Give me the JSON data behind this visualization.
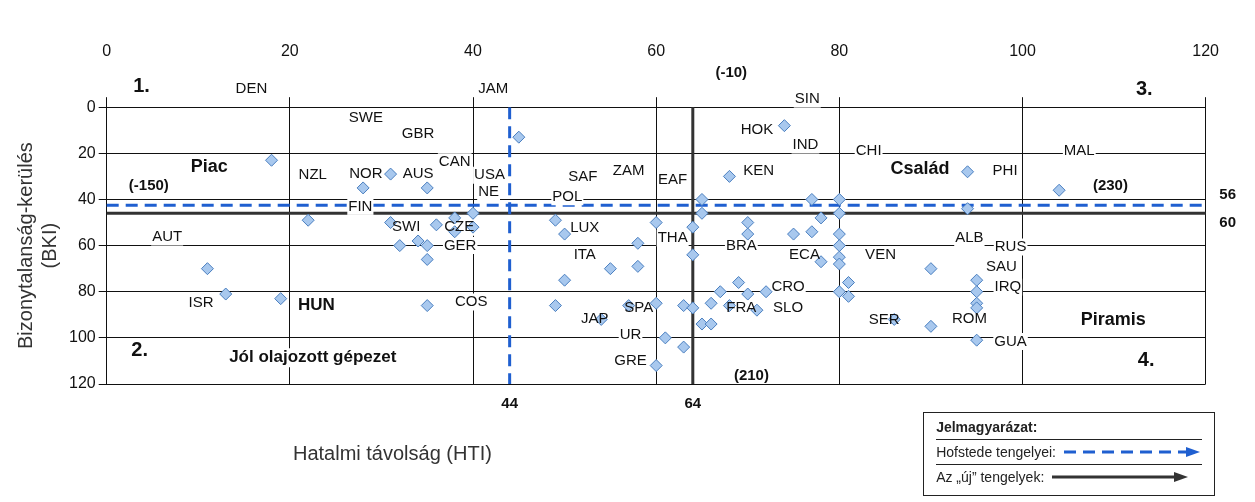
{
  "chart_data": {
    "type": "scatter",
    "xlabel": "Hatalmi távolság (HTI)",
    "ylabel": "Bizonytalanság-kerülés (BKI)",
    "legend_title": "Jelmagyarázat:",
    "xlim": [
      0,
      120
    ],
    "xticks": [
      0,
      20,
      40,
      60,
      80,
      100,
      120
    ],
    "ylim": [
      120,
      0
    ],
    "yticks": [
      0,
      20,
      40,
      60,
      80,
      100,
      120
    ],
    "grid": true,
    "legend": "bottom right",
    "series": [
      {
        "color": "#a8c8ee",
        "marker": "diamond",
        "x": [
          45,
          18,
          31,
          28,
          35,
          22,
          31,
          36,
          40,
          38,
          38,
          40,
          32,
          34,
          35,
          35,
          11,
          13,
          19,
          35,
          68,
          74,
          65,
          65,
          77,
          80,
          80,
          49,
          50,
          60,
          64,
          64,
          58,
          55,
          58,
          50,
          49,
          54,
          57,
          60,
          63,
          64,
          66,
          67,
          69,
          70,
          72,
          71,
          68,
          65,
          66,
          61,
          63,
          60,
          70,
          70,
          75,
          77,
          78,
          78,
          80,
          80,
          80,
          80,
          81,
          81,
          80,
          94,
          94,
          104,
          90,
          95,
          95,
          95,
          95,
          86,
          90,
          95
        ],
        "values": [
          13,
          23,
          29,
          35,
          35,
          49,
          50,
          51,
          46,
          48,
          54,
          52,
          60,
          58,
          60,
          66,
          70,
          81,
          83,
          86,
          30,
          8,
          40,
          46,
          40,
          40,
          46,
          49,
          55,
          50,
          52,
          64,
          59,
          70,
          69,
          75,
          86,
          92,
          86,
          85,
          86,
          87,
          85,
          80,
          76,
          81,
          80,
          88,
          86,
          94,
          94,
          100,
          104,
          112,
          50,
          55,
          55,
          54,
          48,
          67,
          55,
          60,
          65,
          68,
          76,
          82,
          80,
          28,
          44,
          36,
          70,
          75,
          80,
          85,
          87,
          92,
          95,
          101
        ]
      },
      {
        "type": "line",
        "name": "Hofstede tengelyei:",
        "color": "#1f5fd0",
        "line_style": "dashed",
        "marker": "none",
        "x": [
          44,
          44
        ],
        "values": [
          0,
          120
        ]
      },
      {
        "type": "line",
        "name": "Az „új” tengelyek:",
        "color": "#333333",
        "line_style": "solid",
        "marker": "none",
        "x": [
          64,
          64
        ],
        "values": [
          0,
          120
        ]
      }
    ],
    "ref_lines": [
      {
        "axis": "y",
        "value": 42.5,
        "color": "#1f5fd0",
        "line_style": "dashed"
      },
      {
        "axis": "y",
        "value": 46,
        "color": "#333333",
        "line_style": "solid"
      }
    ],
    "annotations": [
      "44",
      "64",
      "1.",
      "DEN",
      "JAM",
      "SWE",
      "GBR",
      "Piac",
      "(-150)",
      "NZL",
      "NOR",
      "AUS",
      "CAN",
      "USA",
      "NE",
      "FIN",
      "AUT",
      "SWI",
      "CZE",
      "GER",
      "ISR",
      "HUN",
      "COS",
      "2.",
      "Jól olajozott gépezet",
      "(-10)",
      "SIN",
      "HOK",
      "IND",
      "CHI",
      "KEN",
      "SAF",
      "ZAM",
      "EAF",
      "POL",
      "LUX",
      "THA",
      "BRA",
      "ITA",
      "ECA",
      "VEN",
      "CRO",
      "FRA",
      "SLO",
      "SPA",
      "JAP",
      "UR",
      "GRE",
      "(210)",
      "Család",
      "PHI",
      "MAL",
      "(230)",
      "3.",
      "ALB",
      "RUS",
      "SAU",
      "IRQ",
      "SER",
      "ROM",
      "GUA",
      "Piramis",
      "4.",
      "56",
      "60"
    ]
  }
}
